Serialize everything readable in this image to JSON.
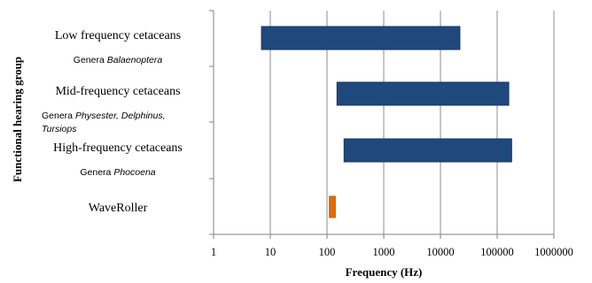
{
  "chart_data": {
    "type": "bar",
    "orientation": "horizontal",
    "title": "",
    "xlabel": "Frequency (Hz)",
    "ylabel": "Functional hearing group",
    "x_scale": "log",
    "xlim": [
      1,
      1000000
    ],
    "x_ticks": [
      "1",
      "10",
      "100",
      "1000",
      "10000",
      "100000",
      "1000000"
    ],
    "grid": "vertical",
    "colors": {
      "group": "#1f497d",
      "source": "#e36c09",
      "grid": "#8c8c8c"
    },
    "categories": [
      {
        "label": "Low frequency cetaceans",
        "sublabel": [
          "Genera Balaenoptera"
        ],
        "range": [
          7,
          22000
        ],
        "color": "#1f497d"
      },
      {
        "label": "Mid-frequency cetaceans",
        "sublabel": [
          "Genera Physester, Delphinus,",
          "Tursiops"
        ],
        "range": [
          150,
          160000
        ],
        "color": "#1f497d"
      },
      {
        "label": "High-frequency cetaceans",
        "sublabel": [
          "Genera Phocoena"
        ],
        "range": [
          200,
          180000
        ],
        "color": "#1f497d"
      },
      {
        "label": "WaveRoller",
        "sublabel": [],
        "range": [
          110,
          140
        ],
        "color": "#e36c09"
      }
    ]
  }
}
